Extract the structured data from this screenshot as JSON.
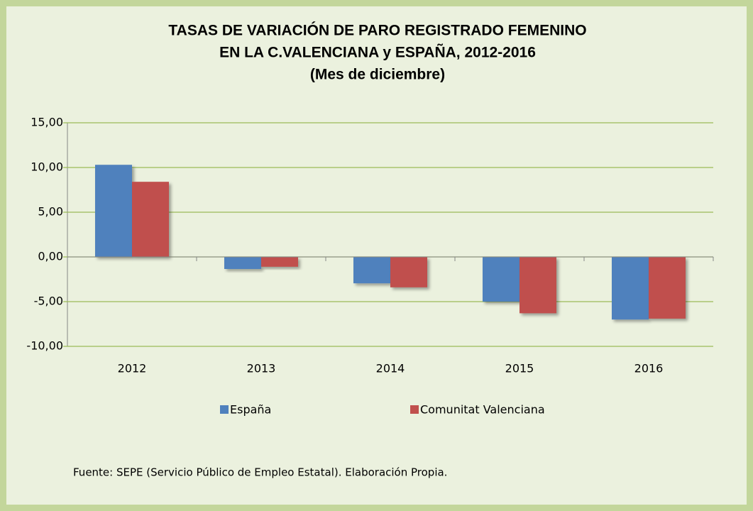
{
  "chart_data": {
    "type": "bar",
    "title": [
      "TASAS DE VARIACIÓN DE PARO REGISTRADO FEMENINO",
      "EN LA C.VALENCIANA y  ESPAÑA, 2012-2016"
    ],
    "subtitle": "(Mes de diciembre)",
    "categories": [
      "2012",
      "2013",
      "2014",
      "2015",
      "2016"
    ],
    "series": [
      {
        "name": "España",
        "color": "#4f81bd",
        "values": [
          10.3,
          -1.35,
          -2.95,
          -5.0,
          -7.0
        ]
      },
      {
        "name": "Comunitat Valenciana",
        "color": "#c0504d",
        "values": [
          8.4,
          -1.1,
          -3.4,
          -6.3,
          -6.9
        ]
      }
    ],
    "ylim": [
      -10,
      15
    ],
    "yticks": [
      {
        "value": -10,
        "label": "-10,00"
      },
      {
        "value": -5,
        "label": "-5,00"
      },
      {
        "value": 0,
        "label": "0,00"
      },
      {
        "value": 5,
        "label": "5,00"
      },
      {
        "value": 10,
        "label": "10,00"
      },
      {
        "value": 15,
        "label": "15,00"
      }
    ],
    "grid": true,
    "legend": "bottom",
    "note": "Fuente: SEPE (Servicio Público de Empleo Estatal). Elaboración Propia."
  }
}
